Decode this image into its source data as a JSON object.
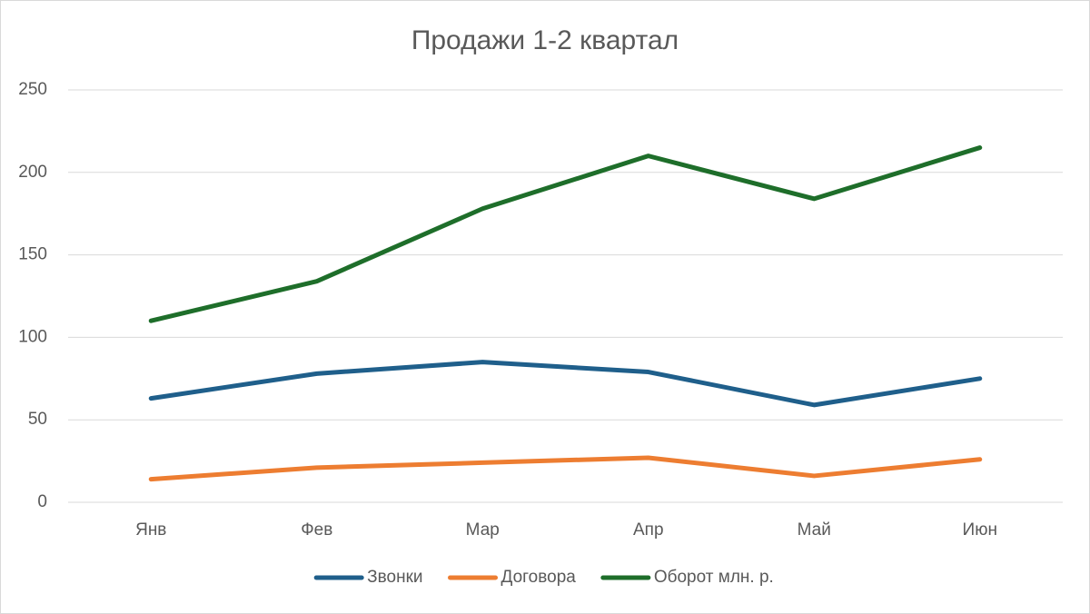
{
  "chart_data": {
    "type": "line",
    "title": "Продажи 1-2 квартал",
    "categories": [
      "Янв",
      "Фев",
      "Мар",
      "Апр",
      "Май",
      "Июн"
    ],
    "series": [
      {
        "name": "Звонки",
        "color": "#1f5f8b",
        "values": [
          63,
          78,
          85,
          79,
          59,
          75
        ]
      },
      {
        "name": "Договора",
        "color": "#ed7d31",
        "values": [
          14,
          21,
          24,
          27,
          16,
          26
        ]
      },
      {
        "name": "Оборот млн. р.",
        "color": "#1e6e2a",
        "values": [
          110,
          134,
          178,
          210,
          184,
          215
        ]
      }
    ],
    "ylim": [
      0,
      250
    ],
    "yticks": [
      0,
      50,
      100,
      150,
      200,
      250
    ],
    "grid": true,
    "legend": "bottom"
  }
}
